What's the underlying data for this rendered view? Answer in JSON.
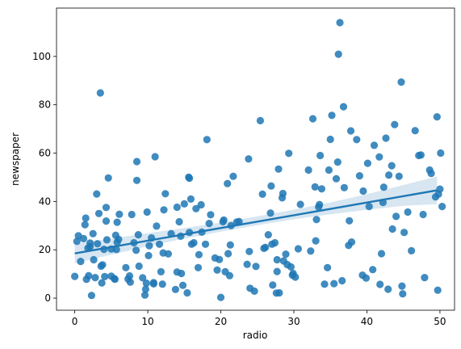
{
  "chart_data": {
    "type": "scatter",
    "title": "",
    "xlabel": "radio",
    "ylabel": "newspaper",
    "xlim": [
      -2.5,
      52.0
    ],
    "ylim": [
      -5,
      120
    ],
    "xticks": [
      0,
      10,
      20,
      30,
      40,
      50
    ],
    "yticks": [
      0,
      20,
      40,
      60,
      80,
      100
    ],
    "grid": false,
    "colors": {
      "points": "#1f77b4",
      "line": "#1f77b4",
      "band": "#1f77b4"
    },
    "regression": {
      "x_start": 0,
      "y_start": 18.5,
      "x_end": 49.6,
      "y_end": 44.6
    },
    "confidence_band": {
      "x": [
        0,
        5,
        10,
        15,
        20,
        25,
        30,
        35,
        40,
        45,
        49.6
      ],
      "lower": [
        14.5,
        18.0,
        21.5,
        24.6,
        27.5,
        30.2,
        32.6,
        34.7,
        36.5,
        38.2,
        38.9
      ],
      "upper": [
        22.5,
        24.6,
        26.9,
        29.0,
        31.3,
        33.8,
        36.6,
        39.6,
        43.0,
        46.8,
        50.3
      ]
    },
    "points": [
      [
        0,
        9
      ],
      [
        0.3,
        23.5
      ],
      [
        0.5,
        25.8
      ],
      [
        0.8,
        15.2
      ],
      [
        1.2,
        24.6
      ],
      [
        1.4,
        30.4
      ],
      [
        1.5,
        33.1
      ],
      [
        1.6,
        7.8
      ],
      [
        1.8,
        20.7
      ],
      [
        1.9,
        9.3
      ],
      [
        2.1,
        21.3
      ],
      [
        2.1,
        22.8
      ],
      [
        2.3,
        1.1
      ],
      [
        2.5,
        26.7
      ],
      [
        2.6,
        15.9
      ],
      [
        2.8,
        8.5
      ],
      [
        3.1,
        22.5
      ],
      [
        3.0,
        43.1
      ],
      [
        3.3,
        35.0
      ],
      [
        3.5,
        84.9
      ],
      [
        3.6,
        13.2
      ],
      [
        3.7,
        6.3
      ],
      [
        3.8,
        13.8
      ],
      [
        4.0,
        20.2
      ],
      [
        4.1,
        8.9
      ],
      [
        4.3,
        37.5
      ],
      [
        4.3,
        31.9
      ],
      [
        4.4,
        24.1
      ],
      [
        4.6,
        49.7
      ],
      [
        5.0,
        9.1
      ],
      [
        5.0,
        20.3
      ],
      [
        5.4,
        8.1
      ],
      [
        5.5,
        7.8
      ],
      [
        5.6,
        26.0
      ],
      [
        5.7,
        20.1
      ],
      [
        5.8,
        31.4
      ],
      [
        5.8,
        23.1
      ],
      [
        6.0,
        24.3
      ],
      [
        6.1,
        34.7
      ],
      [
        7.0,
        12.6
      ],
      [
        7.3,
        7.9
      ],
      [
        7.5,
        9.2
      ],
      [
        7.6,
        6.6
      ],
      [
        7.8,
        34.6
      ],
      [
        8.1,
        22.9
      ],
      [
        8.4,
        19.8
      ],
      [
        8.5,
        56.5
      ],
      [
        8.5,
        48.7
      ],
      [
        8.7,
        26.2
      ],
      [
        8.8,
        13.2
      ],
      [
        9.3,
        8.4
      ],
      [
        9.6,
        1.3
      ],
      [
        9.7,
        3.7
      ],
      [
        9.8,
        6.2
      ],
      [
        9.9,
        35.6
      ],
      [
        10.1,
        17.6
      ],
      [
        10.2,
        21.7
      ],
      [
        10.5,
        24.9
      ],
      [
        10.8,
        6.4
      ],
      [
        10.8,
        5.9
      ],
      [
        11.0,
        58.5
      ],
      [
        11.2,
        29.8
      ],
      [
        11.6,
        22.3
      ],
      [
        11.8,
        10.9
      ],
      [
        12.0,
        5.8
      ],
      [
        12.1,
        18.7
      ],
      [
        12.2,
        36.5
      ],
      [
        12.4,
        43.2
      ],
      [
        12.8,
        18.3
      ],
      [
        13.2,
        26.7
      ],
      [
        13.8,
        3.6
      ],
      [
        14.0,
        10.8
      ],
      [
        14.0,
        37.6
      ],
      [
        14.3,
        31.6
      ],
      [
        14.5,
        25.6
      ],
      [
        14.6,
        10.2
      ],
      [
        14.8,
        5.3
      ],
      [
        15.0,
        39.0
      ],
      [
        15.4,
        2.2
      ],
      [
        15.6,
        50.0
      ],
      [
        15.7,
        49.6
      ],
      [
        15.7,
        27.2
      ],
      [
        15.9,
        41.0
      ],
      [
        16.0,
        22.3
      ],
      [
        16.3,
        22.9
      ],
      [
        16.6,
        37.0
      ],
      [
        16.9,
        12.6
      ],
      [
        17.0,
        18.0
      ],
      [
        17.3,
        38.6
      ],
      [
        17.4,
        27.3
      ],
      [
        17.9,
        22.3
      ],
      [
        18.1,
        65.6
      ],
      [
        18.4,
        30.9
      ],
      [
        18.6,
        34.5
      ],
      [
        19.2,
        16.6
      ],
      [
        19.5,
        11.6
      ],
      [
        19.8,
        16.0
      ],
      [
        20.0,
        0.3
      ],
      [
        20.3,
        31.6
      ],
      [
        20.4,
        32.3
      ],
      [
        20.6,
        10.9
      ],
      [
        20.9,
        47.4
      ],
      [
        21.0,
        18.4
      ],
      [
        21.2,
        9.3
      ],
      [
        21.3,
        22.0
      ],
      [
        21.4,
        30.0
      ],
      [
        21.7,
        50.4
      ],
      [
        22.2,
        31.5
      ],
      [
        22.5,
        31.7
      ],
      [
        23.6,
        14.0
      ],
      [
        23.8,
        57.6
      ],
      [
        23.9,
        19.3
      ],
      [
        24.0,
        4.1
      ],
      [
        24.6,
        2.9
      ],
      [
        24.8,
        13.1
      ],
      [
        25.4,
        73.4
      ],
      [
        25.7,
        43.0
      ],
      [
        25.9,
        20.6
      ],
      [
        26.1,
        21.0
      ],
      [
        26.5,
        26.2
      ],
      [
        26.8,
        35.2
      ],
      [
        26.9,
        46.4
      ],
      [
        27.0,
        22.3
      ],
      [
        27.1,
        5.4
      ],
      [
        27.4,
        22.9
      ],
      [
        27.6,
        2.1
      ],
      [
        27.7,
        11.0
      ],
      [
        27.7,
        15.9
      ],
      [
        27.9,
        53.4
      ],
      [
        28.0,
        2.2
      ],
      [
        28.4,
        41.5
      ],
      [
        28.5,
        43.3
      ],
      [
        28.6,
        15.4
      ],
      [
        28.9,
        18.2
      ],
      [
        29.1,
        13.9
      ],
      [
        29.3,
        59.9
      ],
      [
        29.6,
        12.9
      ],
      [
        29.8,
        9.5
      ],
      [
        29.9,
        10.2
      ],
      [
        30.2,
        8.7
      ],
      [
        30.6,
        20.4
      ],
      [
        30.9,
        38.8
      ],
      [
        32.0,
        53.0
      ],
      [
        32.3,
        19.5
      ],
      [
        32.6,
        74.2
      ],
      [
        32.9,
        46.0
      ],
      [
        33.0,
        23.7
      ],
      [
        33.1,
        32.5
      ],
      [
        33.4,
        37.7
      ],
      [
        33.5,
        38.7
      ],
      [
        33.6,
        59.0
      ],
      [
        33.8,
        45.2
      ],
      [
        34.2,
        5.8
      ],
      [
        34.6,
        12.6
      ],
      [
        34.8,
        53.0
      ],
      [
        35.0,
        65.7
      ],
      [
        35.2,
        75.6
      ],
      [
        35.5,
        6.0
      ],
      [
        35.8,
        49.4
      ],
      [
        36.0,
        56.3
      ],
      [
        36.1,
        100.9
      ],
      [
        36.3,
        114.0
      ],
      [
        36.6,
        7.2
      ],
      [
        36.8,
        79.2
      ],
      [
        36.9,
        45.7
      ],
      [
        37.5,
        21.8
      ],
      [
        37.6,
        32.0
      ],
      [
        37.8,
        69.2
      ],
      [
        37.9,
        23.2
      ],
      [
        38.6,
        65.6
      ],
      [
        39.0,
        50.6
      ],
      [
        39.4,
        9.5
      ],
      [
        39.5,
        44.3
      ],
      [
        39.9,
        8.3
      ],
      [
        40.1,
        55.8
      ],
      [
        40.3,
        37.9
      ],
      [
        40.8,
        11.8
      ],
      [
        41.0,
        63.2
      ],
      [
        41.7,
        58.4
      ],
      [
        41.8,
        5.7
      ],
      [
        42.0,
        18.4
      ],
      [
        42.2,
        39.6
      ],
      [
        42.3,
        45.9
      ],
      [
        42.6,
        66.2
      ],
      [
        42.9,
        3.7
      ],
      [
        43.0,
        50.9
      ],
      [
        43.4,
        54.8
      ],
      [
        43.5,
        28.6
      ],
      [
        43.8,
        71.8
      ],
      [
        44.0,
        33.8
      ],
      [
        44.4,
        50.4
      ],
      [
        44.7,
        89.4
      ],
      [
        44.8,
        5.0
      ],
      [
        44.9,
        1.8
      ],
      [
        45.1,
        27.2
      ],
      [
        45.6,
        35.6
      ],
      [
        46.1,
        19.6
      ],
      [
        46.6,
        69.3
      ],
      [
        47.1,
        59.0
      ],
      [
        47.4,
        59.2
      ],
      [
        47.7,
        34.6
      ],
      [
        47.9,
        8.5
      ],
      [
        48.6,
        53.0
      ],
      [
        48.8,
        51.6
      ],
      [
        49.6,
        75.0
      ],
      [
        49.7,
        3.3
      ],
      [
        49.8,
        43.0
      ],
      [
        50.0,
        45.1
      ],
      [
        50.1,
        60.0
      ],
      [
        50.3,
        37.9
      ],
      [
        49.4,
        41.9
      ]
    ]
  }
}
